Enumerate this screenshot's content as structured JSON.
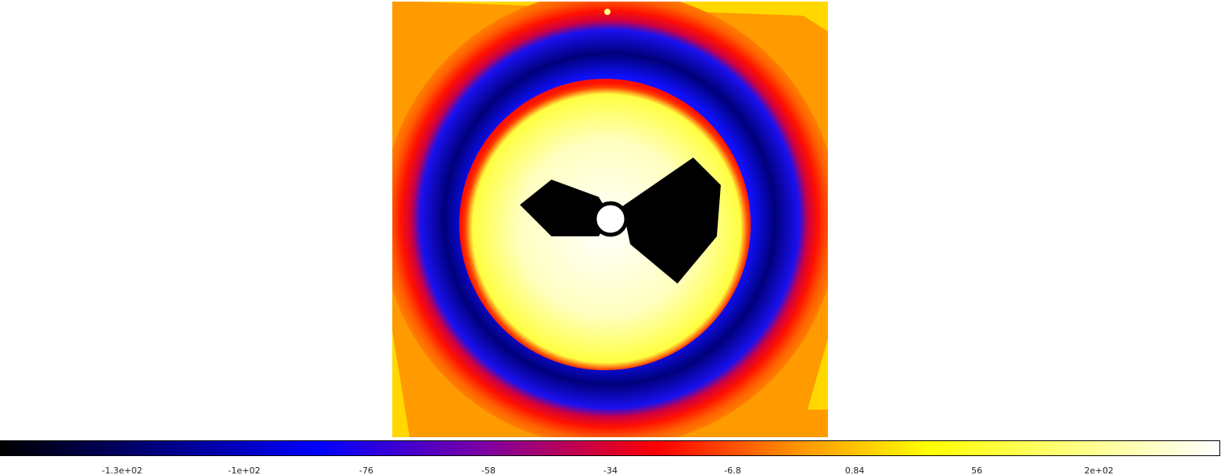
{
  "colorbar": {
    "ticks": [
      "-1.3e+02",
      "-1e+02",
      "-76",
      "-58",
      "-34",
      "-6.8",
      "0.84",
      "56",
      "2e+02"
    ]
  }
}
